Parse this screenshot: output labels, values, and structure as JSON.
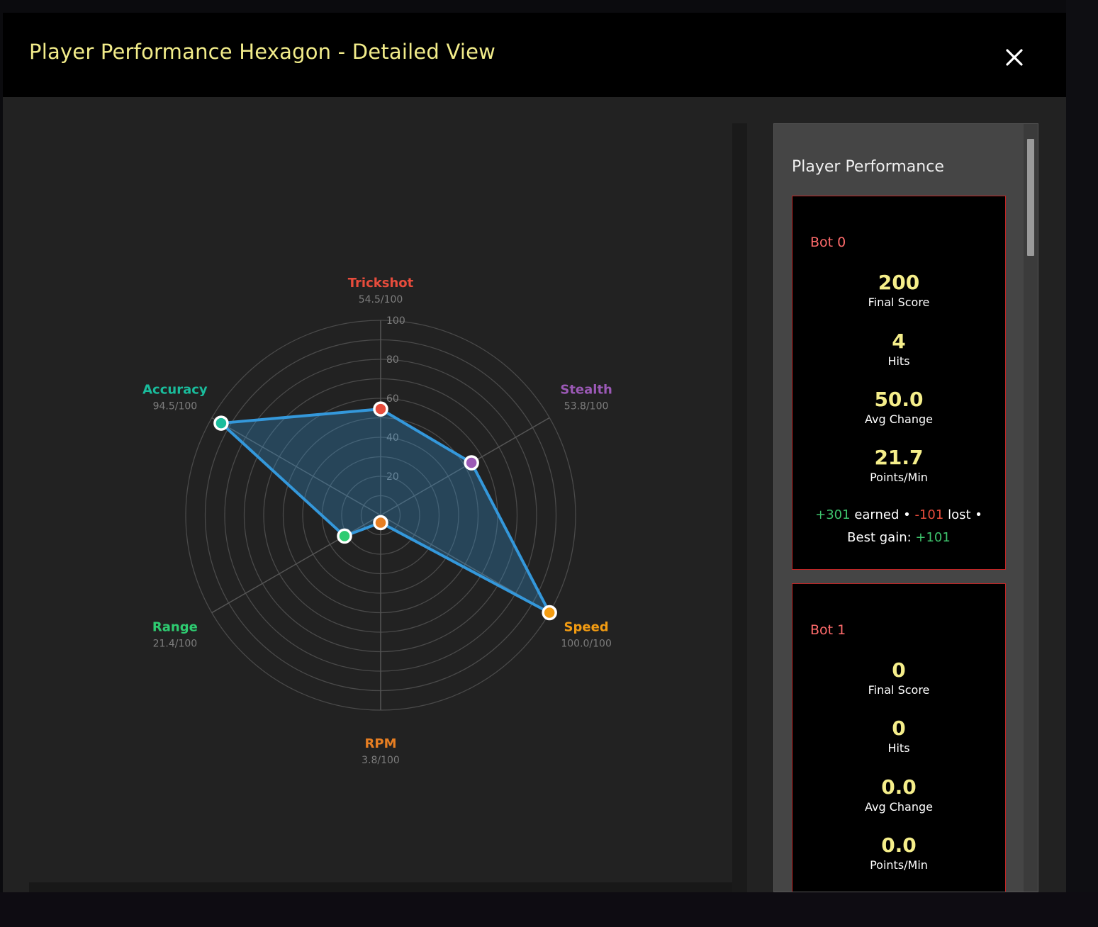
{
  "modal": {
    "title": "Player Performance Hexagon - Detailed View",
    "close_icon": "close-icon"
  },
  "chart_data": {
    "type": "radar",
    "r_range": [
      0,
      100
    ],
    "r_ticks": [
      "20",
      "40",
      "60",
      "80",
      "100"
    ],
    "axes": [
      {
        "name": "Trickshot",
        "value": 54.5,
        "value_label": "54.5/100",
        "color": "#e74c3c"
      },
      {
        "name": "Stealth",
        "value": 53.8,
        "value_label": "53.8/100",
        "color": "#9b59b6"
      },
      {
        "name": "Speed",
        "value": 100.0,
        "value_label": "100.0/100",
        "color": "#f39c12"
      },
      {
        "name": "RPM",
        "value": 3.8,
        "value_label": "3.8/100",
        "color": "#e67e22"
      },
      {
        "name": "Range",
        "value": 21.4,
        "value_label": "21.4/100",
        "color": "#2ecc71"
      },
      {
        "name": "Accuracy",
        "value": 94.5,
        "value_label": "94.5/100",
        "color": "#1abc9c"
      }
    ],
    "series_color": "#3498db",
    "grid": true
  },
  "panel": {
    "title": "Player Performance",
    "bots": [
      {
        "name": "Bot 0",
        "final_score": "200",
        "final_score_label": "Final Score",
        "hits": "4",
        "hits_label": "Hits",
        "avg_change": "50.0",
        "avg_change_label": "Avg Change",
        "points_per_min": "21.7",
        "points_per_min_label": "Points/Min",
        "earned": "+301",
        "earned_label": " earned • ",
        "lost": "-101",
        "lost_label": " lost •",
        "best_gain_label": "Best gain: ",
        "best_gain": "+101"
      },
      {
        "name": "Bot 1",
        "final_score": "0",
        "final_score_label": "Final Score",
        "hits": "0",
        "hits_label": "Hits",
        "avg_change": "0.0",
        "avg_change_label": "Avg Change",
        "points_per_min": "0.0",
        "points_per_min_label": "Points/Min"
      }
    ]
  },
  "colors": {
    "title": "#f2ec8a",
    "stat_value": "#f5ee8a",
    "card_border": "#c32525"
  }
}
